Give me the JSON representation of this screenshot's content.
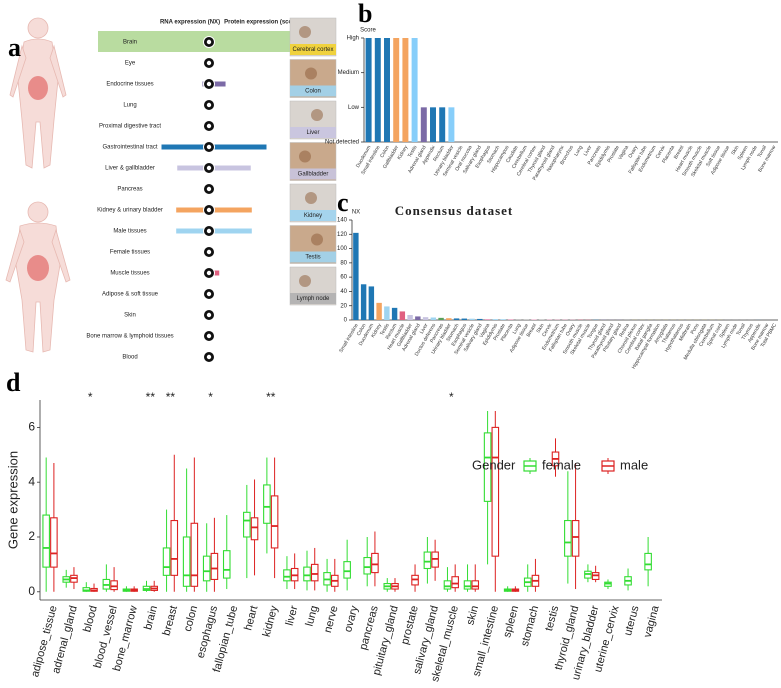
{
  "panel_labels": [
    "a",
    "b",
    "c",
    "d"
  ],
  "panel_a": {
    "headers": [
      "RNA expression (NX)",
      "Protein expression (score)"
    ],
    "tissues": [
      {
        "label": "Brain",
        "rna": 0,
        "color": "#1f77b4"
      },
      {
        "label": "Eye",
        "rna": 0,
        "color": "#1f77b4"
      },
      {
        "label": "Endocrine tissues",
        "rna": 22,
        "color": "#7b6aa6"
      },
      {
        "label": "Lung",
        "rna": 0,
        "color": "#1f77b4"
      },
      {
        "label": "Proximal digestive tract",
        "rna": 0,
        "color": "#1f77b4"
      },
      {
        "label": "Gastrointestinal tract",
        "rna": 100,
        "color": "#1f77b4"
      },
      {
        "label": "Liver & gallbladder",
        "rna": 70,
        "color": "#c8c4e0"
      },
      {
        "label": "Pancreas",
        "rna": 0,
        "color": "#1f77b4"
      },
      {
        "label": "Kidney & urinary bladder",
        "rna": 72,
        "color": "#f4a460"
      },
      {
        "label": "Male tissues",
        "rna": 72,
        "color": "#9fd4f0"
      },
      {
        "label": "Female tissues",
        "rna": 0,
        "color": "#1f77b4"
      },
      {
        "label": "Muscle tissues",
        "rna": 10,
        "color": "#e06080"
      },
      {
        "label": "Adipose & soft tissue",
        "rna": 0,
        "color": "#1f77b4"
      },
      {
        "label": "Skin",
        "rna": 0,
        "color": "#1f77b4"
      },
      {
        "label": "Bone marrow & lymphoid tissues",
        "rna": 0,
        "color": "#1f77b4"
      },
      {
        "label": "Blood",
        "rna": 0,
        "color": "#1f77b4"
      }
    ],
    "protein_images": [
      "Cerebral cortex",
      "Colon",
      "Liver",
      "Gallbladder",
      "Kidney",
      "Testis",
      "Lymph node"
    ],
    "protein_image_colors": [
      "#f2d22e",
      "#9fd4f0",
      "#c8c4e0",
      "#c8c4e0",
      "#9fd4f0",
      "#9fd4f0",
      "#b0b0b0"
    ]
  },
  "chart_data": [
    {
      "type": "bar",
      "ylabel": "Score",
      "categories": [
        "Duodenum",
        "Small intestine",
        "Colon",
        "Gallbladder",
        "Kidney",
        "Testis",
        "Adrenal gland",
        "Appendix",
        "Rectum",
        "Urinary bladder",
        "Seminal vesicle",
        "Oral mucosa",
        "Salivary gland",
        "Esophagus",
        "Stomach",
        "Hippocampus",
        "Caudate",
        "Cerebellum",
        "Cerebral cortex",
        "Thyroid gland",
        "Parathyroid gland",
        "Nasopharynx",
        "Bronchus",
        "Lung",
        "Liver",
        "Pancreas",
        "Epididymis",
        "Prostate",
        "Vagina",
        "Ovary",
        "Fallopian tube",
        "Endometrium",
        "Cervix",
        "Placenta",
        "Breast",
        "Heart muscle",
        "Smooth muscle",
        "Skeletal muscle",
        "Soft tissue",
        "Adipose tissue",
        "Skin",
        "Spleen",
        "Lymph node",
        "Tonsil",
        "Bone marrow"
      ],
      "values": [
        3,
        3,
        3,
        3,
        3,
        3,
        1,
        1,
        1,
        1,
        0,
        0,
        0,
        0,
        0,
        0,
        0,
        0,
        0,
        0,
        0,
        0,
        0,
        0,
        0,
        0,
        0,
        0,
        0,
        0,
        0,
        0,
        0,
        0,
        0,
        0,
        0,
        0,
        0,
        0,
        0,
        0,
        0,
        0,
        0
      ],
      "colors": [
        "#1f77b4",
        "#1f77b4",
        "#1f77b4",
        "#f4a460",
        "#f4a460",
        "#87cefa",
        "#7b6aa6",
        "#1f77b4",
        "#1f77b4",
        "#87cefa",
        "#1f77b4",
        "#1f77b4",
        "#1f77b4",
        "#1f77b4",
        "#1f77b4",
        "#1f77b4",
        "#1f77b4",
        "#1f77b4",
        "#1f77b4",
        "#1f77b4",
        "#1f77b4",
        "#1f77b4",
        "#1f77b4",
        "#1f77b4",
        "#1f77b4",
        "#1f77b4",
        "#1f77b4",
        "#1f77b4",
        "#1f77b4",
        "#1f77b4",
        "#1f77b4",
        "#1f77b4",
        "#1f77b4",
        "#1f77b4",
        "#1f77b4",
        "#1f77b4",
        "#1f77b4",
        "#1f77b4",
        "#1f77b4",
        "#1f77b4",
        "#1f77b4",
        "#1f77b4",
        "#1f77b4",
        "#1f77b4",
        "#1f77b4"
      ],
      "ylim": [
        0,
        3
      ],
      "yticks": [
        {
          "value": 0,
          "label": "Not detected"
        },
        {
          "value": 1,
          "label": "Low"
        },
        {
          "value": 2,
          "label": "Medium"
        },
        {
          "value": 3,
          "label": "High"
        }
      ]
    },
    {
      "type": "bar",
      "title": "Consensus dataset",
      "ylabel": "NX",
      "categories": [
        "Small intestine",
        "Colon",
        "Duodenum",
        "Kidney",
        "Testis",
        "Rectum",
        "Heart muscle",
        "Gallbladder",
        "Adrenal gland",
        "Liver",
        "Ductus deferens",
        "Pancreas",
        "Urinary bladder",
        "Stomach",
        "Esophagus",
        "Seminal vesicle",
        "Salivary gland",
        "Vagina",
        "Epididymis",
        "Prostate",
        "Placenta",
        "Lung",
        "Adipose tissue",
        "Breast",
        "Skin",
        "Cervix",
        "Endometrium",
        "Fallopian tube",
        "Ovary",
        "Smooth muscle",
        "Skeletal muscle",
        "Tongue",
        "Thyroid gland",
        "Parathyroid gland",
        "Pituitary gland",
        "Retina",
        "Choroid plexus",
        "Cerebral cortex",
        "Basal ganglia",
        "Hippocampal formation",
        "Amygdala",
        "Thalamus",
        "Hypothalamus",
        "Midbrain",
        "Pons",
        "Medulla oblongata",
        "Cerebellum",
        "Spinal cord",
        "Spleen",
        "Lymph node",
        "Tonsil",
        "Thymus",
        "Appendix",
        "Bone marrow",
        "Total PBMC"
      ],
      "values": [
        122,
        50,
        47,
        24,
        19,
        17,
        12,
        7,
        5,
        4,
        3.5,
        3,
        2.5,
        2.2,
        2,
        1.8,
        1.5,
        1.3,
        1.2,
        1.1,
        1,
        0.9,
        0.8,
        0.7,
        0.6,
        0.6,
        0.5,
        0.5,
        0.4,
        0.4,
        0.3,
        0.3,
        0.3,
        0.2,
        0.2,
        0.2,
        0.1,
        0.1,
        0.1,
        0.1,
        0.1,
        0.1,
        0.1,
        0.1,
        0.1,
        0.1,
        0.1,
        0.1,
        0.1,
        0.1,
        0.1,
        0.1,
        0.1,
        0,
        0
      ],
      "colors": [
        "#1f77b4",
        "#1f77b4",
        "#1f77b4",
        "#f4a460",
        "#9fd4f0",
        "#1f77b4",
        "#e06080",
        "#c8c4e0",
        "#7b6aa6",
        "#c8c4e0",
        "#9fd4f0",
        "#5aa05a",
        "#f4a460",
        "#1f77b4",
        "#1f77b4",
        "#9fd4f0",
        "#1f77b4",
        "#e9a0c0",
        "#9fd4f0",
        "#9fd4f0",
        "#e9a0c0",
        "#aaaaaa",
        "#aaaaaa",
        "#e9a0c0",
        "#aaaaaa",
        "#e9a0c0",
        "#e9a0c0",
        "#e9a0c0",
        "#e9a0c0",
        "#e06080",
        "#e06080",
        "#1f77b4",
        "#7b6aa6",
        "#7b6aa6",
        "#7b6aa6",
        "#aaaaaa",
        "#f2d22e",
        "#f2d22e",
        "#f2d22e",
        "#f2d22e",
        "#f2d22e",
        "#f2d22e",
        "#f2d22e",
        "#f2d22e",
        "#f2d22e",
        "#f2d22e",
        "#f2d22e",
        "#f2d22e",
        "#aaaaaa",
        "#aaaaaa",
        "#aaaaaa",
        "#aaaaaa",
        "#1f77b4",
        "#aaaaaa",
        "#d62728"
      ],
      "ylim": [
        0,
        140
      ],
      "yticks": [
        0,
        20,
        40,
        60,
        80,
        100,
        120,
        140
      ]
    },
    {
      "type": "box",
      "ylabel": "Gene expression",
      "legend_title": "Gender",
      "legend": "top-right",
      "categories": [
        "adipose_tissue",
        "adrenal_gland",
        "blood",
        "blood_vessel",
        "bone_marrow",
        "brain",
        "breast",
        "colon",
        "esophagus",
        "fallopian_tube",
        "heart",
        "kidney",
        "liver",
        "lung",
        "nerve",
        "ovary",
        "pancreas",
        "pituitary_gland",
        "prostate",
        "salivary_gland",
        "skeletal_muscle",
        "skin",
        "small_intestine",
        "spleen",
        "stomach",
        "testis",
        "thyroid_gland",
        "urinary_bladder",
        "uterine_cervix",
        "uterus",
        "vagina"
      ],
      "significance": [
        null,
        null,
        "*",
        null,
        null,
        "**",
        "**",
        null,
        "*",
        null,
        null,
        "**",
        null,
        null,
        null,
        null,
        null,
        null,
        null,
        null,
        "*",
        null,
        null,
        null,
        null,
        null,
        null,
        null,
        null,
        null,
        null
      ],
      "ylim": [
        -0.3,
        7
      ],
      "yticks": [
        0,
        2,
        4,
        6
      ],
      "series": [
        {
          "name": "female",
          "color": "#33dd33",
          "q1": [
            0.9,
            0.35,
            0.02,
            0.1,
            0.02,
            0.05,
            0.6,
            0.2,
            0.4,
            0.5,
            2.0,
            2.5,
            0.4,
            0.4,
            0.25,
            0.5,
            0.65,
            0.1,
            null,
            0.85,
            0.1,
            0.1,
            3.3,
            0.02,
            0.2,
            null,
            1.3,
            0.5,
            0.2,
            0.25,
            0.8
          ],
          "median": [
            1.6,
            0.45,
            0.05,
            0.25,
            0.05,
            0.1,
            0.9,
            0.6,
            0.75,
            0.8,
            2.6,
            3.1,
            0.55,
            0.6,
            0.45,
            0.75,
            0.9,
            0.2,
            null,
            1.1,
            0.2,
            0.2,
            4.9,
            0.05,
            0.35,
            null,
            1.8,
            0.65,
            0.3,
            0.4,
            1.0
          ],
          "q3": [
            2.8,
            0.55,
            0.15,
            0.45,
            0.1,
            0.2,
            1.6,
            2.0,
            1.3,
            1.5,
            2.9,
            3.9,
            0.8,
            0.9,
            0.7,
            1.1,
            1.25,
            0.3,
            null,
            1.45,
            0.4,
            0.4,
            5.8,
            0.1,
            0.5,
            null,
            2.6,
            0.75,
            0.35,
            0.55,
            1.4
          ],
          "whislo": [
            0,
            0.15,
            0,
            0,
            0,
            0,
            0,
            0,
            0,
            0.1,
            0.5,
            1.4,
            0.1,
            0.05,
            0,
            0.05,
            0.2,
            0,
            null,
            0.3,
            0,
            0,
            1.0,
            0,
            0,
            null,
            0.3,
            0.35,
            0.1,
            0.05,
            0.2
          ],
          "whishi": [
            4.9,
            0.8,
            0.35,
            1.0,
            0.2,
            0.4,
            3.0,
            4.5,
            2.5,
            2.8,
            3.9,
            4.9,
            1.3,
            1.5,
            1.2,
            1.9,
            2.0,
            0.5,
            null,
            2.0,
            0.9,
            1.0,
            6.6,
            0.2,
            1.0,
            null,
            4.4,
            1.0,
            0.45,
            0.85,
            2.0
          ]
        },
        {
          "name": "male",
          "color": "#dd2222",
          "q1": [
            0.9,
            0.35,
            0.02,
            0.08,
            0.02,
            0.05,
            0.6,
            0.2,
            0.45,
            null,
            1.9,
            1.6,
            0.4,
            0.4,
            0.2,
            null,
            0.7,
            0.1,
            0.25,
            0.9,
            0.15,
            0.1,
            1.3,
            0.02,
            0.2,
            4.6,
            1.3,
            0.45,
            null,
            null,
            null
          ],
          "median": [
            1.4,
            0.5,
            0.05,
            0.2,
            0.05,
            0.12,
            1.2,
            0.6,
            0.85,
            null,
            2.35,
            2.4,
            0.6,
            0.65,
            0.4,
            null,
            1.0,
            0.2,
            0.45,
            1.2,
            0.3,
            0.2,
            4.9,
            0.05,
            0.4,
            4.85,
            2.0,
            0.6,
            null,
            null,
            null
          ],
          "q3": [
            2.7,
            0.6,
            0.12,
            0.4,
            0.1,
            0.2,
            2.6,
            2.5,
            1.4,
            null,
            2.7,
            3.5,
            0.85,
            1.0,
            0.6,
            null,
            1.4,
            0.3,
            0.6,
            1.45,
            0.55,
            0.4,
            6.0,
            0.1,
            0.6,
            5.1,
            2.6,
            0.7,
            null,
            null,
            null
          ],
          "whislo": [
            0,
            0.1,
            0,
            0,
            0,
            0,
            0,
            0,
            0,
            null,
            0.6,
            0.5,
            0.1,
            0.05,
            0,
            null,
            0.2,
            0,
            0,
            0.4,
            0,
            0,
            0,
            0,
            0,
            4.2,
            0.1,
            0.35,
            null,
            null,
            null
          ],
          "whishi": [
            4.7,
            0.9,
            0.3,
            0.9,
            0.2,
            0.4,
            5.0,
            4.9,
            2.7,
            null,
            4.1,
            4.9,
            1.4,
            1.6,
            1.2,
            null,
            2.2,
            0.5,
            1.0,
            1.9,
            1.0,
            1.0,
            6.6,
            0.2,
            1.2,
            5.6,
            4.7,
            0.95,
            null,
            null,
            null
          ]
        }
      ]
    }
  ]
}
